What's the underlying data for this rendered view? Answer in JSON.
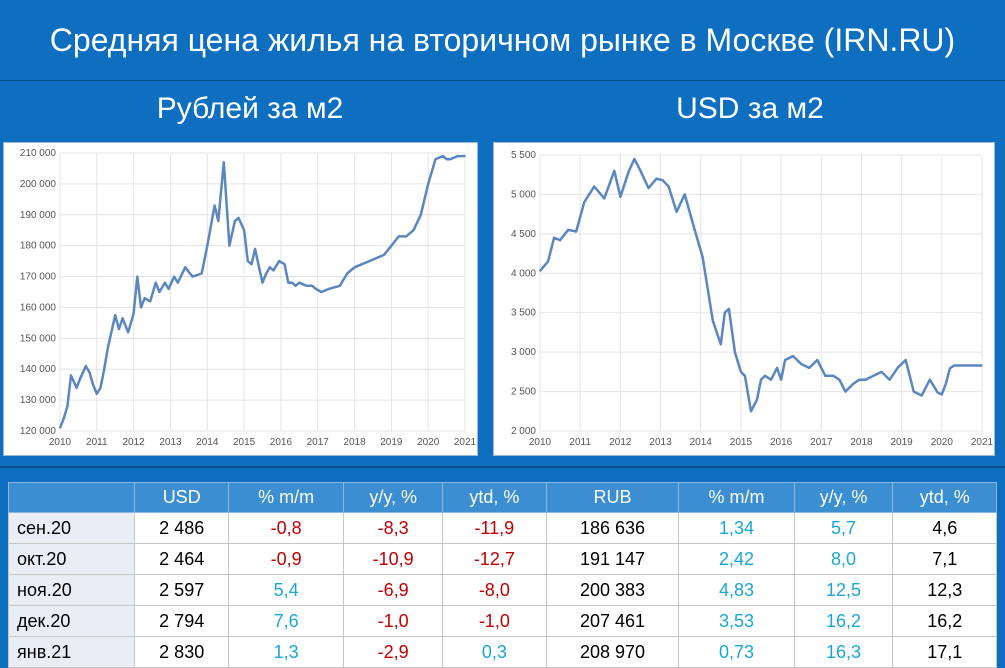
{
  "title": "Средняя цена жилья на вторичном рынке в Москве (IRN.RU)",
  "subtitle_left": "Рублей за м2",
  "subtitle_right": "USD за м2",
  "colors": {
    "background": "#0e6ec0",
    "line": "#5b86c2",
    "negative": "#c00000",
    "positive": "#1aa6d9",
    "header": "#3c8ed3"
  },
  "chart_data": [
    {
      "type": "line",
      "title": "Рублей за м2",
      "ylim": [
        120000,
        210000
      ],
      "yticks": [
        "120 000",
        "130 000",
        "140 000",
        "150 000",
        "160 000",
        "170 000",
        "180 000",
        "190 000",
        "200 000",
        "210 000"
      ],
      "ytick_values": [
        120000,
        130000,
        140000,
        150000,
        160000,
        170000,
        180000,
        190000,
        200000,
        210000
      ],
      "xticks": [
        "2010",
        "2011",
        "2012",
        "2013",
        "2014",
        "2015",
        "2016",
        "2017",
        "2018",
        "2019",
        "2020",
        "2021"
      ],
      "xlim": [
        2010,
        2021
      ],
      "x": [
        2010.0,
        2010.1,
        2010.2,
        2010.3,
        2010.45,
        2010.55,
        2010.7,
        2010.8,
        2010.9,
        2011.0,
        2011.1,
        2011.2,
        2011.3,
        2011.5,
        2011.6,
        2011.7,
        2011.85,
        2011.9,
        2012.0,
        2012.1,
        2012.2,
        2012.3,
        2012.45,
        2012.6,
        2012.7,
        2012.85,
        2012.95,
        2013.1,
        2013.2,
        2013.4,
        2013.6,
        2013.85,
        2014.0,
        2014.2,
        2014.3,
        2014.45,
        2014.6,
        2014.75,
        2014.85,
        2015.0,
        2015.1,
        2015.2,
        2015.3,
        2015.35,
        2015.5,
        2015.6,
        2015.7,
        2015.8,
        2015.95,
        2016.1,
        2016.2,
        2016.3,
        2016.4,
        2016.5,
        2016.7,
        2016.85,
        2016.95,
        2017.1,
        2017.3,
        2017.6,
        2017.8,
        2018.0,
        2018.2,
        2018.4,
        2018.6,
        2018.8,
        2019.0,
        2019.2,
        2019.4,
        2019.6,
        2019.8,
        2020.0,
        2020.2,
        2020.4,
        2020.5,
        2020.6,
        2020.7,
        2020.8,
        2020.9,
        2021.0
      ],
      "values": [
        121000,
        124000,
        128000,
        138000,
        134000,
        137000,
        141000,
        139000,
        135000,
        132000,
        134000,
        140000,
        147000,
        157500,
        153000,
        156500,
        152000,
        154000,
        158000,
        170000,
        160000,
        163000,
        162000,
        168000,
        165000,
        168000,
        166000,
        170000,
        168000,
        173000,
        170000,
        171000,
        180000,
        193000,
        188000,
        207000,
        180000,
        188000,
        189000,
        185000,
        175000,
        174000,
        179000,
        176000,
        168000,
        171000,
        173000,
        172000,
        175000,
        174000,
        168000,
        168000,
        167000,
        168000,
        167000,
        167000,
        166000,
        165000,
        166000,
        167000,
        171000,
        173000,
        174000,
        175000,
        176000,
        177000,
        180000,
        183000,
        183000,
        185000,
        190000,
        200000,
        208000,
        209000,
        208000,
        208000,
        208500,
        209000,
        209000,
        209000
      ]
    },
    {
      "type": "line",
      "title": "USD за м2",
      "ylim": [
        2000,
        5500
      ],
      "yticks": [
        "2 000",
        "2 500",
        "3 000",
        "3 500",
        "4 000",
        "4 500",
        "5 000",
        "5 500"
      ],
      "ytick_values": [
        2000,
        2500,
        3000,
        3500,
        4000,
        4500,
        5000,
        5500
      ],
      "xticks": [
        "2010",
        "2011",
        "2012",
        "2013",
        "2014",
        "2015",
        "2016",
        "2017",
        "2018",
        "2019",
        "2020",
        "2021"
      ],
      "xlim": [
        2010,
        2021
      ],
      "x": [
        2010.0,
        2010.2,
        2010.35,
        2010.5,
        2010.7,
        2010.9,
        2011.1,
        2011.35,
        2011.6,
        2011.85,
        2012.0,
        2012.2,
        2012.35,
        2012.5,
        2012.7,
        2012.9,
        2013.05,
        2013.2,
        2013.4,
        2013.6,
        2013.85,
        2014.05,
        2014.3,
        2014.5,
        2014.6,
        2014.7,
        2014.85,
        2015.0,
        2015.1,
        2015.25,
        2015.4,
        2015.5,
        2015.6,
        2015.75,
        2015.9,
        2016.0,
        2016.1,
        2016.3,
        2016.5,
        2016.7,
        2016.9,
        2017.1,
        2017.3,
        2017.45,
        2017.6,
        2017.8,
        2017.95,
        2018.1,
        2018.3,
        2018.5,
        2018.7,
        2018.9,
        2019.1,
        2019.3,
        2019.5,
        2019.7,
        2019.9,
        2020.0,
        2020.1,
        2020.2,
        2020.3,
        2020.4,
        2020.55,
        2020.7,
        2020.8,
        2020.9,
        2021.0
      ],
      "values": [
        4030,
        4150,
        4450,
        4420,
        4550,
        4530,
        4900,
        5100,
        4950,
        5300,
        4970,
        5280,
        5450,
        5300,
        5080,
        5200,
        5180,
        5100,
        4780,
        5000,
        4550,
        4200,
        3400,
        3100,
        3500,
        3550,
        3000,
        2750,
        2700,
        2250,
        2400,
        2650,
        2700,
        2650,
        2800,
        2650,
        2900,
        2950,
        2850,
        2800,
        2900,
        2700,
        2700,
        2650,
        2500,
        2600,
        2650,
        2650,
        2700,
        2750,
        2650,
        2800,
        2900,
        2500,
        2450,
        2650,
        2486,
        2464,
        2597,
        2794,
        2830,
        2830,
        2830,
        2830,
        2830,
        2830,
        2830
      ]
    }
  ],
  "table": {
    "headers": [
      "",
      "USD",
      "% m/m",
      "y/y, %",
      "ytd, %",
      "RUB",
      "% m/m",
      "y/y, %",
      "ytd, %"
    ],
    "rows": [
      {
        "label": "сен.20",
        "cells": [
          "2 486",
          "-0,8",
          "-8,3",
          "-11,9",
          "186 636",
          "1,34",
          "5,7",
          "4,6"
        ]
      },
      {
        "label": "окт.20",
        "cells": [
          "2 464",
          "-0,9",
          "-10,9",
          "-12,7",
          "191 147",
          "2,42",
          "8,0",
          "7,1"
        ]
      },
      {
        "label": "ноя.20",
        "cells": [
          "2 597",
          "5,4",
          "-6,9",
          "-8,0",
          "200 383",
          "4,83",
          "12,5",
          "12,3"
        ]
      },
      {
        "label": "дек.20",
        "cells": [
          "2 794",
          "7,6",
          "-1,0",
          "-1,0",
          "207 461",
          "3,53",
          "16,2",
          "16,2"
        ]
      },
      {
        "label": "янв.21",
        "cells": [
          "2 830",
          "1,3",
          "-2,9",
          "0,3",
          "208 970",
          "0,73",
          "16,3",
          "17,1"
        ]
      }
    ]
  }
}
